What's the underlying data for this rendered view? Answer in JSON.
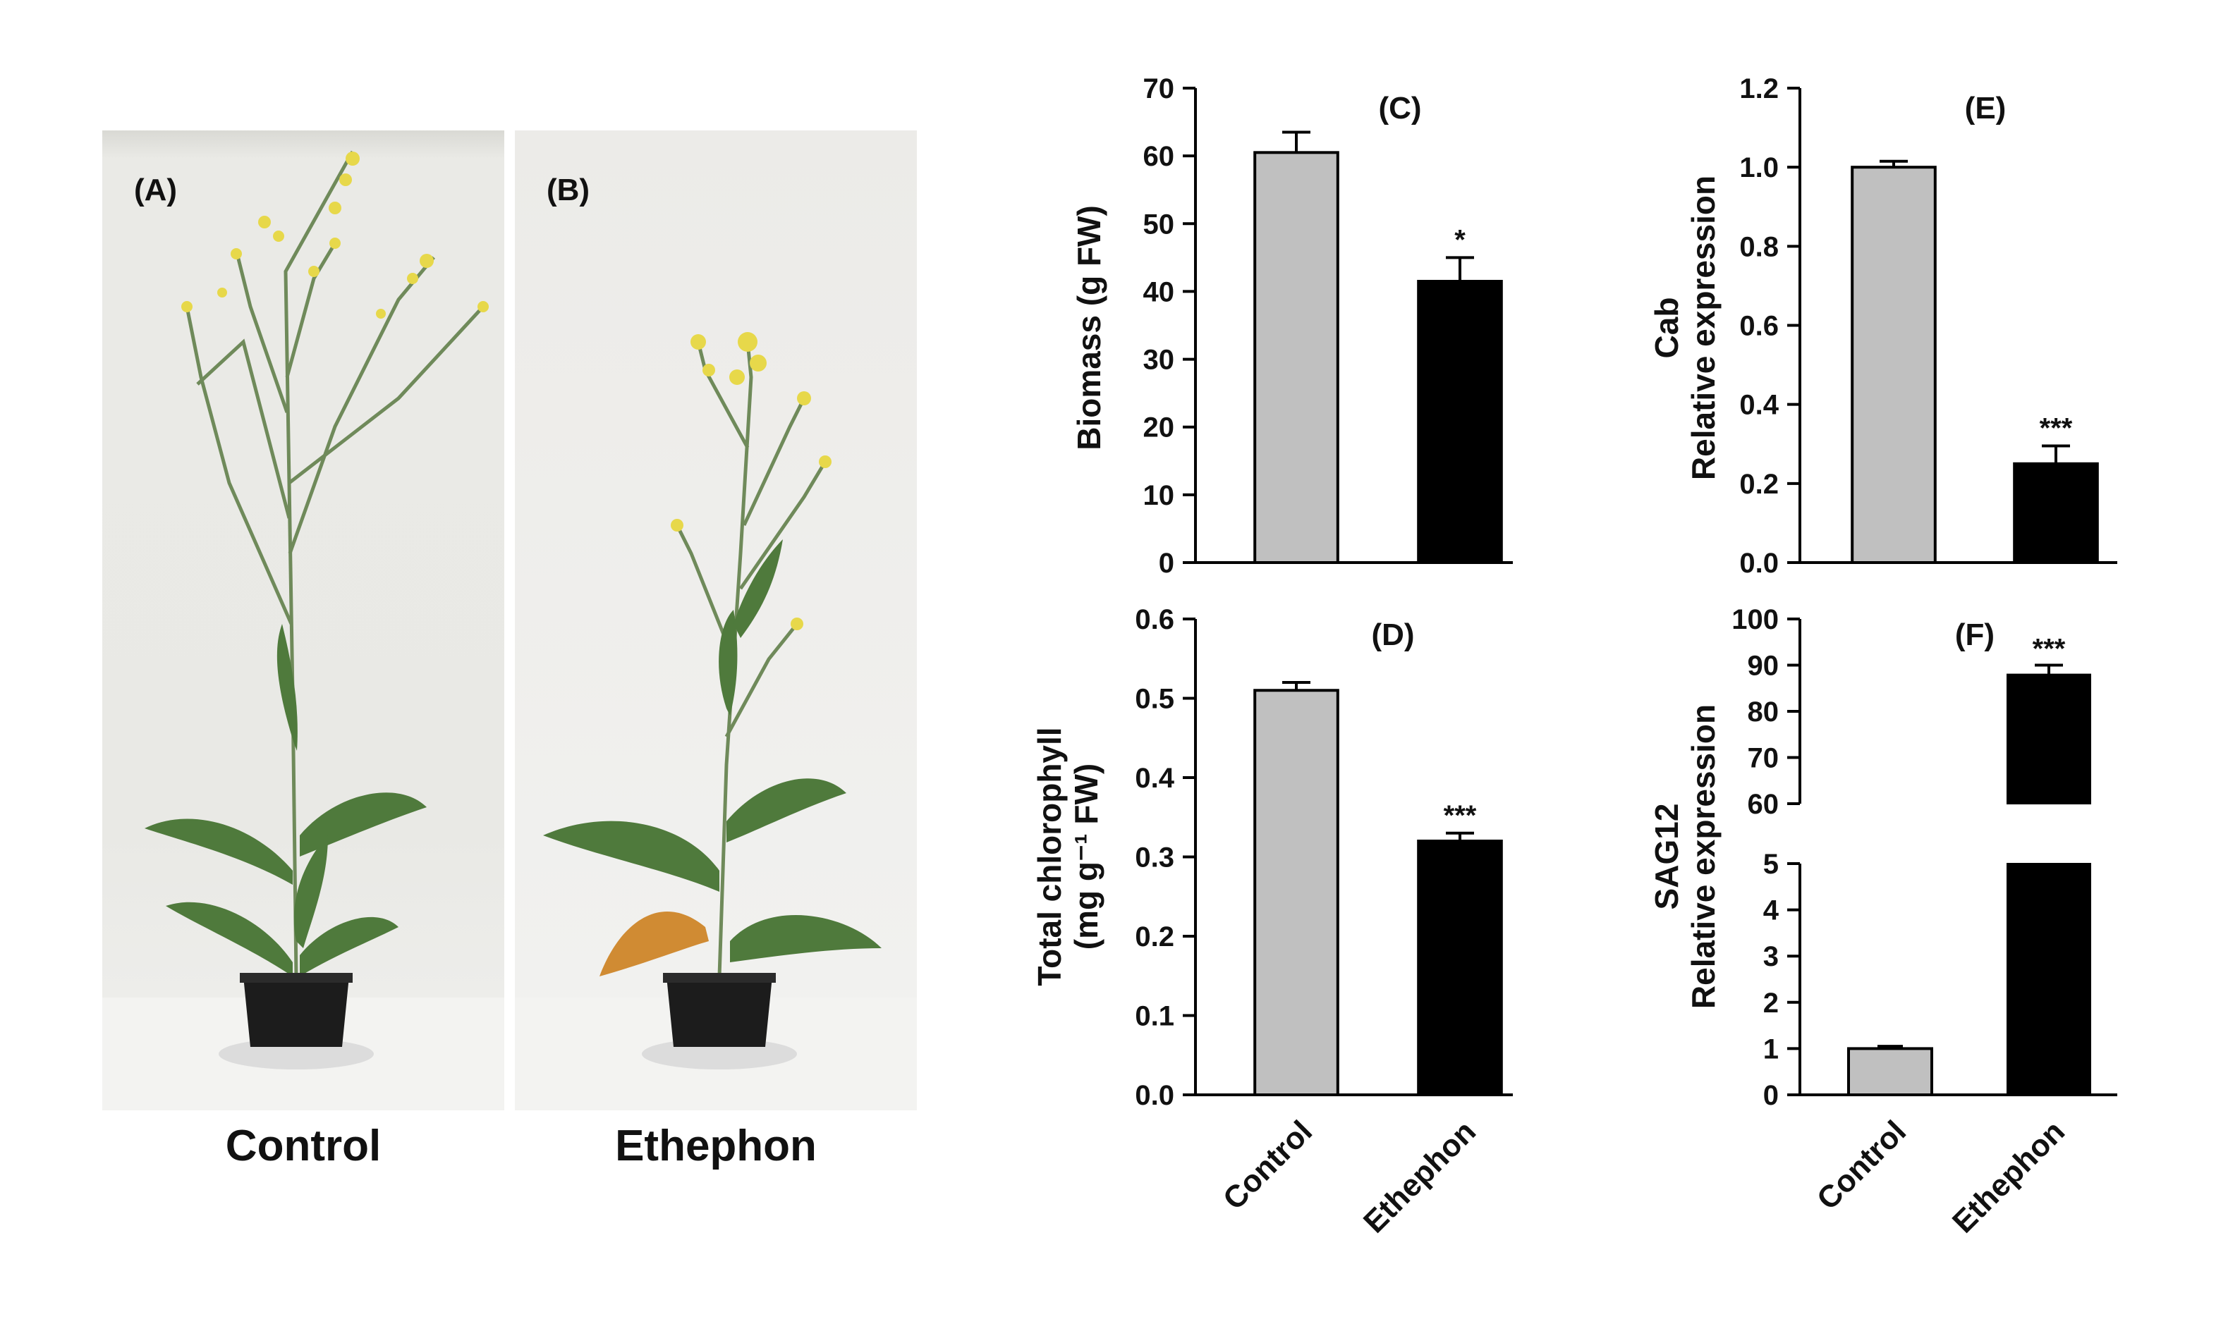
{
  "photos": [
    {
      "tag": "(A)",
      "caption": "Control"
    },
    {
      "tag": "(B)",
      "caption": "Ethephon"
    }
  ],
  "colors": {
    "control": "#c0c0c0",
    "ethephon": "#000000"
  },
  "chart_data": [
    {
      "type": "bar",
      "panel_label": "(C)",
      "categories": [
        "Control",
        "Ethephon"
      ],
      "values": [
        60.5,
        41.5
      ],
      "errors": [
        3.0,
        3.5
      ],
      "significance": [
        "",
        "*"
      ],
      "ylabel": [
        "Biomass (g FW)"
      ],
      "ylim": [
        0,
        70
      ],
      "yticks": [
        "0",
        "10",
        "20",
        "30",
        "40",
        "50",
        "60",
        "70"
      ]
    },
    {
      "type": "bar",
      "panel_label": "(D)",
      "categories": [
        "Control",
        "Ethephon"
      ],
      "values": [
        0.51,
        0.32
      ],
      "errors": [
        0.01,
        0.01
      ],
      "significance": [
        "",
        "***"
      ],
      "ylabel": [
        "Total chlorophyll",
        "(mg g⁻¹ FW)"
      ],
      "ylim": [
        0,
        0.6
      ],
      "yticks": [
        "0.0",
        "0.1",
        "0.2",
        "0.3",
        "0.4",
        "0.5",
        "0.6"
      ],
      "xticklabels": [
        "Control",
        "Ethephon"
      ]
    },
    {
      "type": "bar",
      "panel_label": "(E)",
      "categories": [
        "Control",
        "Ethephon"
      ],
      "values": [
        1.0,
        0.25
      ],
      "errors": [
        0.015,
        0.045
      ],
      "significance": [
        "",
        "***"
      ],
      "ylabel": [
        "Cab",
        "Relative expression"
      ],
      "ylim": [
        0,
        1.2
      ],
      "yticks": [
        "0.0",
        "0.2",
        "0.4",
        "0.6",
        "0.8",
        "1.0",
        "1.2"
      ]
    },
    {
      "type": "bar",
      "panel_label": "(F)",
      "categories": [
        "Control",
        "Ethephon"
      ],
      "values": [
        1.0,
        88.0
      ],
      "errors": [
        0.05,
        2.0
      ],
      "significance": [
        "",
        "***"
      ],
      "ylabel": [
        "SAG12",
        "Relative expression"
      ],
      "axis_break": [
        5,
        60
      ],
      "ylim_lower": [
        0,
        5
      ],
      "ylim_upper": [
        60,
        100
      ],
      "yticks_lower": [
        "0",
        "1",
        "2",
        "3",
        "4",
        "5"
      ],
      "yticks_upper": [
        "60",
        "70",
        "80",
        "90",
        "100"
      ],
      "xticklabels": [
        "Control",
        "Ethephon"
      ]
    }
  ]
}
